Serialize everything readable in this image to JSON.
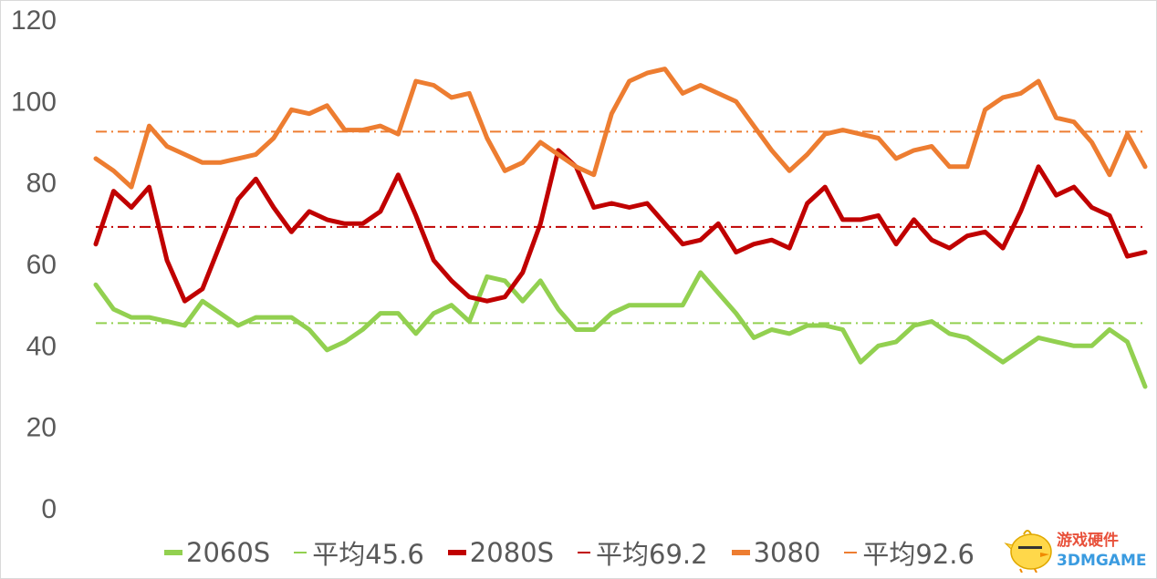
{
  "chart_data": {
    "type": "line",
    "title": "",
    "xlabel": "",
    "ylabel": "",
    "ylim": [
      0,
      120
    ],
    "yticks": [
      0,
      20,
      40,
      60,
      80,
      100,
      120
    ],
    "grid": false,
    "legend_position": "bottom",
    "series": [
      {
        "name": "2060S",
        "color": "#92d050",
        "values": [
          55,
          49,
          47,
          47,
          46,
          45,
          51,
          48,
          45,
          47,
          47,
          47,
          44,
          39,
          41,
          44,
          48,
          48,
          43,
          48,
          50,
          46,
          57,
          56,
          51,
          56,
          49,
          44,
          44,
          48,
          50,
          50,
          50,
          50,
          58,
          53,
          48,
          42,
          44,
          43,
          45,
          45,
          44,
          36,
          40,
          41,
          45,
          46,
          43,
          42,
          39,
          36,
          39,
          42,
          41,
          40,
          40,
          44,
          41,
          30
        ]
      },
      {
        "name": "平均45.6",
        "color": "#92d050",
        "values": [
          45.6,
          45.6
        ]
      },
      {
        "name": "2080S",
        "color": "#c00000",
        "values": [
          65,
          78,
          74,
          79,
          61,
          51,
          54,
          65,
          76,
          81,
          74,
          68,
          73,
          71,
          70,
          70,
          73,
          82,
          72,
          61,
          56,
          52,
          51,
          52,
          58,
          70,
          88,
          84,
          74,
          75,
          74,
          75,
          70,
          65,
          66,
          70,
          63,
          65,
          66,
          64,
          75,
          79,
          71,
          71,
          72,
          65,
          71,
          66,
          64,
          67,
          68,
          64,
          73,
          84,
          77,
          79,
          74,
          72,
          62,
          63
        ]
      },
      {
        "name": "平均69.2",
        "color": "#c00000",
        "values": [
          69.2,
          69.2
        ]
      },
      {
        "name": "3080",
        "color": "#ed7d31",
        "values": [
          86,
          83,
          79,
          94,
          89,
          87,
          85,
          85,
          86,
          87,
          91,
          98,
          97,
          99,
          93,
          93,
          94,
          92,
          105,
          104,
          101,
          102,
          91,
          83,
          85,
          90,
          87,
          84,
          82,
          97,
          105,
          107,
          108,
          102,
          104,
          102,
          100,
          94,
          88,
          83,
          87,
          92,
          93,
          92,
          91,
          86,
          88,
          89,
          84,
          84,
          98,
          101,
          102,
          105,
          96,
          95,
          90,
          82,
          92,
          84
        ]
      },
      {
        "name": "平均92.6",
        "color": "#ed7d31",
        "values": [
          92.6,
          92.6
        ]
      }
    ]
  },
  "legend": [
    {
      "label": "2060S",
      "color": "#92d050",
      "style": "solid"
    },
    {
      "label": "平均45.6",
      "color": "#92d050",
      "style": "dashdot"
    },
    {
      "label": "2080S",
      "color": "#c00000",
      "style": "solid"
    },
    {
      "label": "平均69.2",
      "color": "#c00000",
      "style": "dashdot"
    },
    {
      "label": "3080",
      "color": "#ed7d31",
      "style": "solid"
    },
    {
      "label": "平均92.6",
      "color": "#ed7d31",
      "style": "dashdot"
    }
  ],
  "watermark": {
    "line1": "游戏硬件",
    "line2": "3DMGAME",
    "icon": "chick-mascot-icon"
  }
}
